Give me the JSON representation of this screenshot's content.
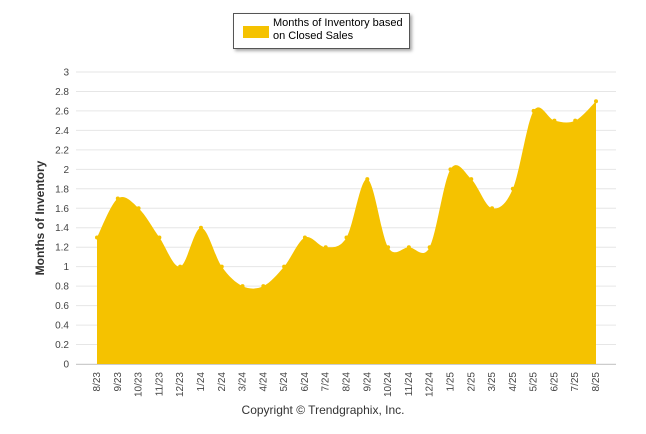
{
  "chart_data": {
    "type": "area",
    "legend": {
      "label": "Months of Inventory based on Closed Sales",
      "placement": "top-center"
    },
    "ylabel": "Months of Inventory",
    "xlabel": "",
    "ylim": [
      0,
      3
    ],
    "yticks": [
      "0",
      "0.2",
      "0.4",
      "0.6",
      "0.8",
      "1",
      "1.2",
      "1.4",
      "1.6",
      "1.8",
      "2",
      "2.2",
      "2.4",
      "2.6",
      "2.8",
      "3"
    ],
    "grid": true,
    "color": "#F5C200",
    "categories": [
      "8/23",
      "9/23",
      "10/23",
      "11/23",
      "12/23",
      "1/24",
      "2/24",
      "3/24",
      "4/24",
      "5/24",
      "6/24",
      "7/24",
      "8/24",
      "9/24",
      "10/24",
      "11/24",
      "12/24",
      "1/25",
      "2/25",
      "3/25",
      "4/25",
      "5/25",
      "6/25",
      "7/25",
      "8/25"
    ],
    "series": [
      {
        "name": "Months of Inventory based on Closed Sales",
        "values": [
          1.3,
          1.7,
          1.6,
          1.3,
          1.0,
          1.4,
          1.0,
          0.8,
          0.8,
          1.0,
          1.3,
          1.2,
          1.3,
          1.9,
          1.2,
          1.2,
          1.2,
          2.0,
          1.9,
          1.6,
          1.8,
          2.6,
          2.5,
          2.5,
          2.7
        ]
      }
    ]
  },
  "footer": {
    "copyright": "Copyright © Trendgraphix, Inc."
  }
}
